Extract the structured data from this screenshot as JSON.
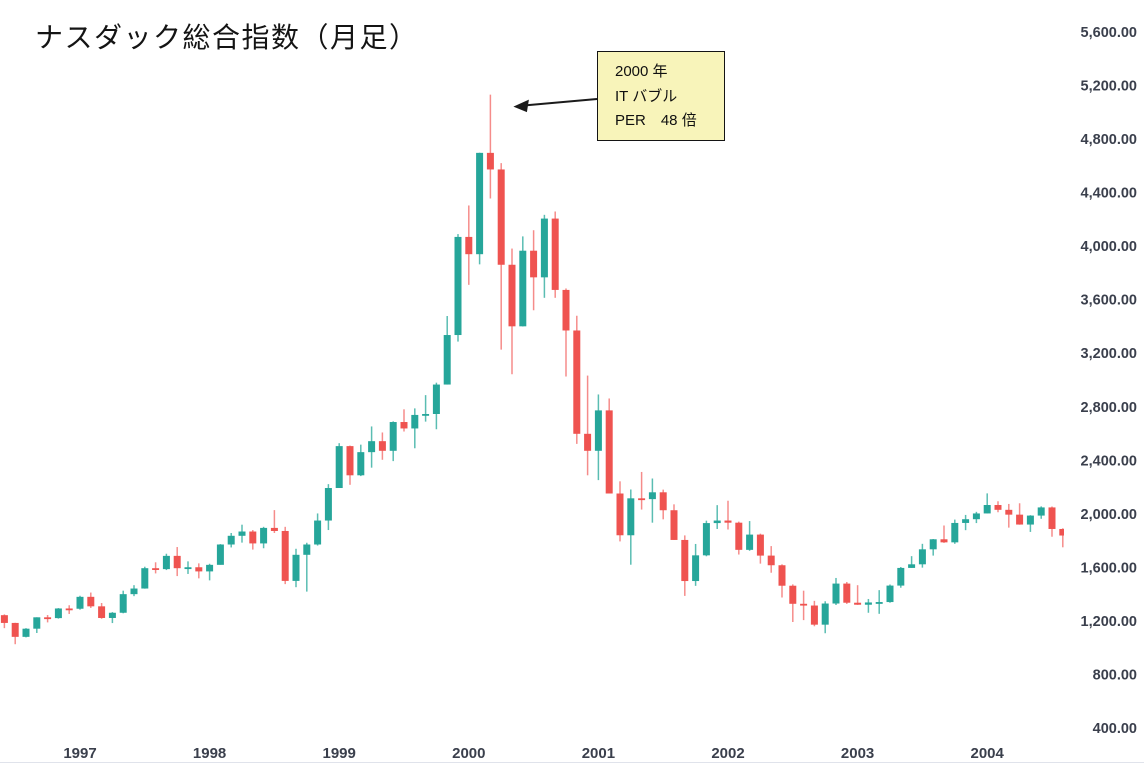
{
  "title": "ナスダック総合指数（月足）",
  "annotation": {
    "line1": "2000 年",
    "line2": "IT バブル",
    "line3": "PER　48 倍"
  },
  "colors": {
    "up_body": "#26a69a",
    "down_body": "#ef5350",
    "up_wick": "#5abdb2",
    "down_wick": "#f58c8a",
    "axis_text": "#3a3f4c",
    "baseline": "#e0e3eb",
    "annotation_bg": "#f8f4ba",
    "annotation_border": "#141414",
    "arrow": "#1b1b1b",
    "title_text": "#141414",
    "background": "#ffffff"
  },
  "chart_data": {
    "type": "candlestick",
    "title": "ナスダック総合指数（月足）",
    "xlabel": "",
    "ylabel": "",
    "grid": false,
    "legend": "none",
    "y_axis": {
      "position": "right",
      "min": 400,
      "max": 5600,
      "step": 400,
      "ticks": [
        {
          "value": 5600,
          "label": "5,600.00"
        },
        {
          "value": 5200,
          "label": "5,200.00"
        },
        {
          "value": 4800,
          "label": "4,800.00"
        },
        {
          "value": 4400,
          "label": "4,400.00"
        },
        {
          "value": 4000,
          "label": "4,000.00"
        },
        {
          "value": 3600,
          "label": "3,600.00"
        },
        {
          "value": 3200,
          "label": "3,200.00"
        },
        {
          "value": 2800,
          "label": "2,800.00"
        },
        {
          "value": 2400,
          "label": "2,400.00"
        },
        {
          "value": 2000,
          "label": "2,000.00"
        },
        {
          "value": 1600,
          "label": "1,600.00"
        },
        {
          "value": 1200,
          "label": "1,200.00"
        },
        {
          "value": 800,
          "label": "800.00"
        },
        {
          "value": 400,
          "label": "400.00"
        }
      ]
    },
    "x_axis": {
      "ticks": [
        {
          "year": 1997,
          "label": "1997"
        },
        {
          "year": 1998,
          "label": "1998"
        },
        {
          "year": 1999,
          "label": "1999"
        },
        {
          "year": 2000,
          "label": "2000"
        },
        {
          "year": 2001,
          "label": "2001"
        },
        {
          "year": 2002,
          "label": "2002"
        },
        {
          "year": 2003,
          "label": "2003"
        },
        {
          "year": 2004,
          "label": "2004"
        }
      ]
    },
    "annotation_target": {
      "month": "2000-03",
      "high": 5132
    },
    "columns": [
      "month",
      "open",
      "high",
      "low",
      "close"
    ],
    "candles": [
      [
        "1996-05",
        1190,
        1265,
        1180,
        1243
      ],
      [
        "1996-06",
        1243,
        1249,
        1146,
        1185
      ],
      [
        "1996-07",
        1185,
        1186,
        1026,
        1081
      ],
      [
        "1996-08",
        1081,
        1146,
        1077,
        1142
      ],
      [
        "1996-09",
        1142,
        1227,
        1110,
        1227
      ],
      [
        "1996-10",
        1227,
        1244,
        1189,
        1221
      ],
      [
        "1996-11",
        1221,
        1296,
        1217,
        1293
      ],
      [
        "1996-12",
        1293,
        1317,
        1252,
        1291
      ],
      [
        "1997-01",
        1291,
        1388,
        1284,
        1380
      ],
      [
        "1997-02",
        1380,
        1412,
        1297,
        1309
      ],
      [
        "1997-03",
        1309,
        1334,
        1216,
        1222
      ],
      [
        "1997-04",
        1222,
        1266,
        1184,
        1261
      ],
      [
        "1997-05",
        1261,
        1426,
        1257,
        1400
      ],
      [
        "1997-06",
        1400,
        1467,
        1385,
        1442
      ],
      [
        "1997-07",
        1442,
        1605,
        1441,
        1594
      ],
      [
        "1997-08",
        1594,
        1638,
        1555,
        1587
      ],
      [
        "1997-09",
        1587,
        1702,
        1580,
        1686
      ],
      [
        "1997-10",
        1686,
        1752,
        1535,
        1594
      ],
      [
        "1997-11",
        1594,
        1645,
        1551,
        1601
      ],
      [
        "1997-12",
        1601,
        1630,
        1518,
        1570
      ],
      [
        "1998-01",
        1570,
        1627,
        1503,
        1619
      ],
      [
        "1998-02",
        1619,
        1774,
        1620,
        1771
      ],
      [
        "1998-03",
        1771,
        1857,
        1749,
        1836
      ],
      [
        "1998-04",
        1836,
        1919,
        1785,
        1868
      ],
      [
        "1998-05",
        1868,
        1879,
        1733,
        1779
      ],
      [
        "1998-06",
        1779,
        1903,
        1743,
        1895
      ],
      [
        "1998-07",
        1895,
        2028,
        1857,
        1872
      ],
      [
        "1998-08",
        1872,
        1903,
        1475,
        1499
      ],
      [
        "1998-09",
        1499,
        1739,
        1452,
        1694
      ],
      [
        "1998-10",
        1694,
        1784,
        1419,
        1771
      ],
      [
        "1998-11",
        1771,
        2003,
        1763,
        1950
      ],
      [
        "1998-12",
        1950,
        2222,
        1879,
        2193
      ],
      [
        "1999-01",
        2193,
        2528,
        2194,
        2506
      ],
      [
        "1999-02",
        2506,
        2510,
        2217,
        2288
      ],
      [
        "1999-03",
        2288,
        2517,
        2282,
        2461
      ],
      [
        "1999-04",
        2461,
        2653,
        2345,
        2543
      ],
      [
        "1999-05",
        2543,
        2608,
        2404,
        2471
      ],
      [
        "1999-06",
        2471,
        2691,
        2394,
        2686
      ],
      [
        "1999-07",
        2686,
        2781,
        2615,
        2638
      ],
      [
        "1999-08",
        2638,
        2788,
        2490,
        2739
      ],
      [
        "1999-09",
        2739,
        2887,
        2689,
        2746
      ],
      [
        "1999-10",
        2746,
        2980,
        2632,
        2966
      ],
      [
        "1999-11",
        2966,
        3478,
        2966,
        3336
      ],
      [
        "1999-12",
        3336,
        4090,
        3287,
        4069
      ],
      [
        "2000-01",
        4069,
        4304,
        3711,
        3940
      ],
      [
        "2000-02",
        3940,
        4698,
        3864,
        4697
      ],
      [
        "2000-03",
        4697,
        5132,
        4356,
        4573
      ],
      [
        "2000-04",
        4573,
        4620,
        3227,
        3861
      ],
      [
        "2000-05",
        3861,
        3982,
        3043,
        3401
      ],
      [
        "2000-06",
        3401,
        4073,
        3400,
        3966
      ],
      [
        "2000-07",
        3966,
        4119,
        3521,
        3767
      ],
      [
        "2000-08",
        3767,
        4234,
        3614,
        4206
      ],
      [
        "2000-09",
        4206,
        4259,
        3614,
        3673
      ],
      [
        "2000-10",
        3673,
        3684,
        3026,
        3370
      ],
      [
        "2000-11",
        3370,
        3480,
        2523,
        2598
      ],
      [
        "2000-12",
        2598,
        3033,
        2288,
        2471
      ],
      [
        "2001-01",
        2471,
        2892,
        2252,
        2773
      ],
      [
        "2001-02",
        2773,
        2862,
        2156,
        2152
      ],
      [
        "2001-03",
        2152,
        2243,
        1794,
        1840
      ],
      [
        "2001-04",
        1840,
        2182,
        1620,
        2116
      ],
      [
        "2001-05",
        2116,
        2313,
        2032,
        2110
      ],
      [
        "2001-06",
        2110,
        2264,
        1934,
        2161
      ],
      [
        "2001-07",
        2161,
        2181,
        1959,
        2027
      ],
      [
        "2001-08",
        2027,
        2071,
        1805,
        1805
      ],
      [
        "2001-09",
        1805,
        1839,
        1387,
        1498
      ],
      [
        "2001-10",
        1498,
        1775,
        1462,
        1690
      ],
      [
        "2001-11",
        1690,
        1949,
        1683,
        1931
      ],
      [
        "2001-12",
        1931,
        2065,
        1887,
        1950
      ],
      [
        "2002-01",
        1950,
        2098,
        1883,
        1934
      ],
      [
        "2002-02",
        1934,
        1942,
        1696,
        1731
      ],
      [
        "2002-03",
        1731,
        1946,
        1724,
        1845
      ],
      [
        "2002-04",
        1845,
        1852,
        1628,
        1688
      ],
      [
        "2002-05",
        1688,
        1759,
        1560,
        1616
      ],
      [
        "2002-06",
        1616,
        1623,
        1375,
        1463
      ],
      [
        "2002-07",
        1463,
        1473,
        1192,
        1328
      ],
      [
        "2002-08",
        1328,
        1426,
        1206,
        1315
      ],
      [
        "2002-09",
        1315,
        1350,
        1160,
        1172
      ],
      [
        "2002-10",
        1172,
        1347,
        1108,
        1330
      ],
      [
        "2002-11",
        1330,
        1521,
        1319,
        1479
      ],
      [
        "2002-12",
        1479,
        1491,
        1327,
        1336
      ],
      [
        "2003-01",
        1336,
        1467,
        1320,
        1321
      ],
      [
        "2003-02",
        1321,
        1364,
        1261,
        1338
      ],
      [
        "2003-03",
        1338,
        1430,
        1253,
        1341
      ],
      [
        "2003-04",
        1341,
        1472,
        1336,
        1464
      ],
      [
        "2003-05",
        1464,
        1603,
        1448,
        1596
      ],
      [
        "2003-06",
        1596,
        1684,
        1597,
        1623
      ],
      [
        "2003-07",
        1623,
        1776,
        1598,
        1735
      ],
      [
        "2003-08",
        1735,
        1812,
        1688,
        1810
      ],
      [
        "2003-09",
        1810,
        1913,
        1783,
        1787
      ],
      [
        "2003-10",
        1787,
        1957,
        1776,
        1932
      ],
      [
        "2003-11",
        1932,
        1992,
        1878,
        1960
      ],
      [
        "2003-12",
        1960,
        2015,
        1931,
        2003
      ],
      [
        "2004-01",
        2003,
        2153,
        2003,
        2066
      ],
      [
        "2004-02",
        2066,
        2094,
        2012,
        2030
      ],
      [
        "2004-03",
        2030,
        2074,
        1897,
        1994
      ],
      [
        "2004-04",
        1994,
        2079,
        1919,
        1920
      ],
      [
        "2004-05",
        1920,
        1990,
        1865,
        1987
      ],
      [
        "2004-06",
        1987,
        2056,
        1963,
        2048
      ],
      [
        "2004-07",
        2048,
        2055,
        1829,
        1887
      ],
      [
        "2004-08",
        1887,
        1892,
        1750,
        1838
      ]
    ]
  }
}
